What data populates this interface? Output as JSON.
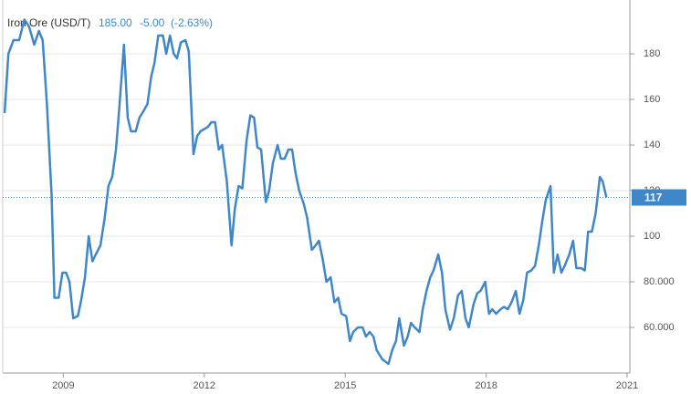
{
  "chart_data": {
    "type": "line",
    "title": "Iron Ore (USD/T)",
    "price": "185.00",
    "change": "-5.00",
    "change_pct": "(-2.63%)",
    "color": "#3f87c8",
    "xlim": [
      2007.71,
      2021
    ],
    "xticks": [
      2009,
      2012,
      2015,
      2018,
      2021
    ],
    "ylim": [
      40,
      200
    ],
    "yticks": [
      {
        "value": 60,
        "label": "60.000"
      },
      {
        "value": 80,
        "label": "80.000"
      },
      100,
      120,
      140,
      160,
      180
    ],
    "grid": true,
    "x": [
      2007.75,
      2007.83,
      2007.94,
      2008.06,
      2008.17,
      2008.27,
      2008.38,
      2008.48,
      2008.56,
      2008.65,
      2008.75,
      2008.81,
      2008.9,
      2008.98,
      2009.06,
      2009.13,
      2009.21,
      2009.31,
      2009.38,
      2009.46,
      2009.54,
      2009.62,
      2009.69,
      2009.79,
      2009.88,
      2009.96,
      2010.04,
      2010.12,
      2010.19,
      2010.29,
      2010.37,
      2010.44,
      2010.54,
      2010.62,
      2010.71,
      2010.79,
      2010.87,
      2010.94,
      2011.02,
      2011.12,
      2011.19,
      2011.27,
      2011.35,
      2011.42,
      2011.5,
      2011.6,
      2011.67,
      2011.77,
      2011.85,
      2011.92,
      2012.0,
      2012.08,
      2012.15,
      2012.23,
      2012.31,
      2012.38,
      2012.48,
      2012.58,
      2012.65,
      2012.73,
      2012.81,
      2012.9,
      2012.98,
      2013.06,
      2013.13,
      2013.21,
      2013.31,
      2013.38,
      2013.46,
      2013.56,
      2013.63,
      2013.71,
      2013.79,
      2013.87,
      2013.94,
      2014.02,
      2014.12,
      2014.19,
      2014.29,
      2014.37,
      2014.44,
      2014.52,
      2014.6,
      2014.69,
      2014.77,
      2014.85,
      2014.92,
      2015.02,
      2015.1,
      2015.17,
      2015.27,
      2015.37,
      2015.44,
      2015.52,
      2015.6,
      2015.67,
      2015.79,
      2015.92,
      2016.0,
      2016.08,
      2016.15,
      2016.25,
      2016.33,
      2016.4,
      2016.48,
      2016.58,
      2016.65,
      2016.73,
      2016.81,
      2016.88,
      2016.98,
      2017.06,
      2017.13,
      2017.23,
      2017.31,
      2017.4,
      2017.48,
      2017.56,
      2017.63,
      2017.73,
      2017.81,
      2017.88,
      2017.98,
      2018.06,
      2018.13,
      2018.21,
      2018.31,
      2018.38,
      2018.46,
      2018.54,
      2018.63,
      2018.71,
      2018.79,
      2018.87,
      2018.96,
      2019.04,
      2019.12,
      2019.19,
      2019.27,
      2019.37,
      2019.44,
      2019.52,
      2019.6,
      2019.67,
      2019.77,
      2019.85,
      2019.92,
      2020.02,
      2020.1,
      2020.17,
      2020.25,
      2020.33,
      2020.42,
      2020.48,
      2020.56
    ],
    "values": [
      154,
      180,
      186,
      186,
      195,
      192,
      184,
      190,
      186,
      158,
      118,
      73,
      73,
      84,
      84,
      80,
      64,
      65,
      72,
      82,
      100,
      89,
      92,
      96,
      108,
      122,
      126,
      138,
      156,
      184,
      152,
      146,
      146,
      152,
      155,
      158,
      170,
      176,
      188,
      188,
      180,
      188,
      180,
      178,
      185,
      186,
      181,
      136,
      144,
      146,
      147,
      148,
      150,
      150,
      138,
      140,
      124,
      96,
      112,
      122,
      121,
      142,
      153,
      152,
      139,
      138,
      115,
      120,
      132,
      140,
      134,
      134,
      138,
      138,
      128,
      120,
      114,
      108,
      94,
      96,
      98,
      90,
      80,
      82,
      71,
      73,
      66,
      65,
      54,
      58,
      60,
      60,
      56,
      58,
      56,
      50,
      46,
      44,
      50,
      54,
      64,
      52,
      56,
      62,
      60,
      58,
      68,
      76,
      82,
      85,
      92,
      84,
      68,
      59,
      64,
      74,
      76,
      64,
      60,
      70,
      75,
      76,
      80,
      66,
      68,
      66,
      68,
      69,
      68,
      71,
      76,
      66,
      72,
      84,
      85,
      87,
      96,
      106,
      116,
      122,
      84,
      92,
      84,
      87,
      92,
      98,
      86,
      86,
      85,
      102,
      102,
      110,
      126,
      124,
      117
    ]
  }
}
